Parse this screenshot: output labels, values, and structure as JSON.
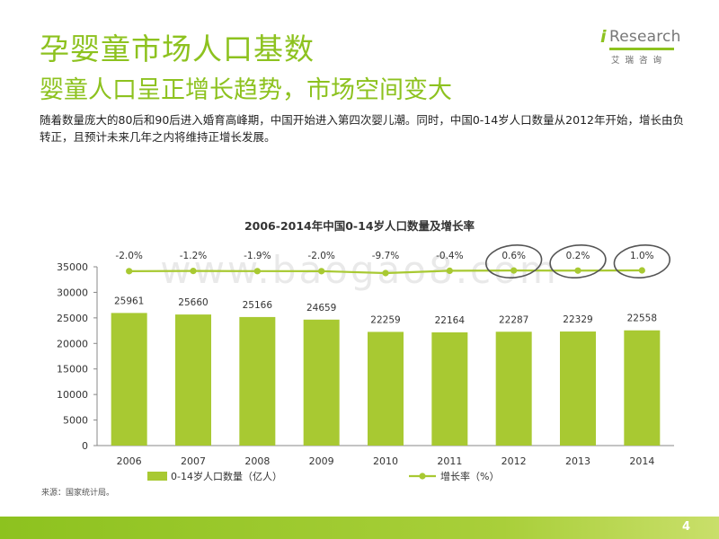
{
  "header": {
    "title": "孕婴童市场人口基数",
    "subtitle": "婴童人口呈正增长趋势，市场空间变大",
    "description": "随着数量庞大的80后和90后进入婚育高峰期，中国开始进入第四次婴儿潮。同时，中国0-14岁人口数量从2012年开始，增长由负转正，且预计未来几年之内将维持正增长发展。"
  },
  "logo": {
    "mark": "i",
    "name": "Research",
    "cn": "艾瑞咨询"
  },
  "chart_data": {
    "type": "bar",
    "title": "2006-2014年中国0-14岁人口数量及增长率",
    "categories": [
      "2006",
      "2007",
      "2008",
      "2009",
      "2010",
      "2011",
      "2012",
      "2013",
      "2014"
    ],
    "series": [
      {
        "name": "0-14岁人口数量（亿人）",
        "kind": "bar",
        "values": [
          25961,
          25660,
          25166,
          24659,
          22259,
          22164,
          22287,
          22329,
          22558
        ],
        "color": "#a8c932"
      },
      {
        "name": "增长率（%）",
        "kind": "line",
        "labels": [
          "-2.0%",
          "-1.2%",
          "-1.9%",
          "-2.0%",
          "-9.7%",
          "-0.4%",
          "0.6%",
          "0.2%",
          "1.0%"
        ],
        "values": [
          -2.0,
          -1.2,
          -1.9,
          -2.0,
          -9.7,
          -0.4,
          0.6,
          0.2,
          1.0
        ],
        "color": "#a8c932"
      }
    ],
    "y_ticks": [
      "35000",
      "30000",
      "25000",
      "20000",
      "15000",
      "10000",
      "5000",
      "0"
    ],
    "ylim": [
      0,
      35000
    ],
    "highlighted": [
      "2012",
      "2013",
      "2014"
    ],
    "legend_position": "bottom",
    "grid": false
  },
  "source": "来源：国家统计局。",
  "page_number": "4",
  "watermark": "www.baogao8.com",
  "colors": {
    "accent": "#8dc21f",
    "bar": "#a8c932",
    "circle": "#555555"
  }
}
